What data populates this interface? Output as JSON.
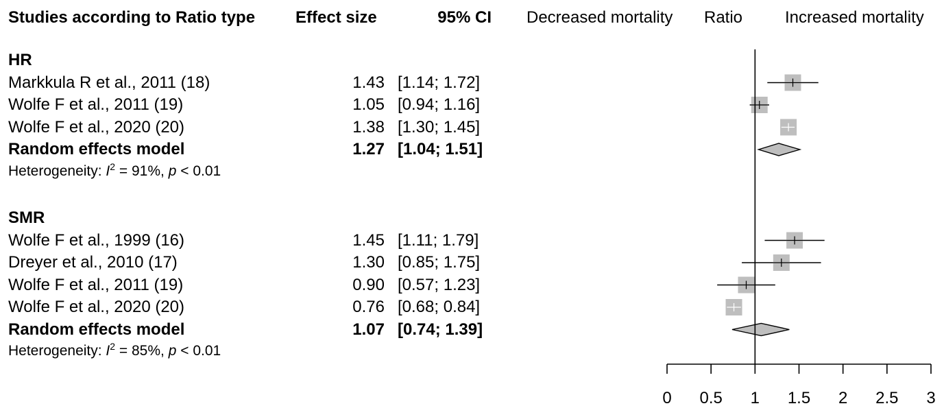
{
  "header": {
    "study_col": "Studies according to Ratio type",
    "effect_col": "Effect size",
    "ci_col": "95% CI",
    "left_label": "Decreased mortality",
    "center_label": "Ratio",
    "right_label": "Increased mortality"
  },
  "chart_data": {
    "type": "forest",
    "title": "",
    "xlabel": "Ratio",
    "xlim": [
      0,
      3
    ],
    "x_ticks": [
      "0",
      "0.5",
      "1",
      "1.5",
      "2",
      "2.5",
      "3"
    ],
    "x_tick_values": [
      0,
      0.5,
      1,
      1.5,
      2,
      2.5,
      3
    ],
    "reference_line": 1,
    "groups": [
      {
        "label": "HR",
        "studies": [
          {
            "name": "Markkula R et al., 2011 (18)",
            "effect": 1.43,
            "lower": 1.14,
            "upper": 1.72,
            "effect_text": "1.43",
            "ci_text": "[1.14; 1.72]"
          },
          {
            "name": "Wolfe F et al., 2011 (19)",
            "effect": 1.05,
            "lower": 0.94,
            "upper": 1.16,
            "effect_text": "1.05",
            "ci_text": "[0.94; 1.16]"
          },
          {
            "name": "Wolfe F et al., 2020 (20)",
            "effect": 1.38,
            "lower": 1.3,
            "upper": 1.45,
            "effect_text": "1.38",
            "ci_text": "[1.30; 1.45]"
          }
        ],
        "pooled": {
          "name": "Random effects model",
          "effect": 1.27,
          "lower": 1.04,
          "upper": 1.51,
          "effect_text": "1.27",
          "ci_text": "[1.04; 1.51]"
        },
        "heterogeneity": {
          "prefix": "Heterogeneity: ",
          "i2_symbol": "I",
          "i2_sup": "2",
          "i2_text": " = 91%, ",
          "p_symbol": "p",
          "p_text": " < 0.01"
        }
      },
      {
        "label": "SMR",
        "studies": [
          {
            "name": "Wolfe F et al., 1999 (16)",
            "effect": 1.45,
            "lower": 1.11,
            "upper": 1.79,
            "effect_text": "1.45",
            "ci_text": "[1.11; 1.79]"
          },
          {
            "name": "Dreyer et al., 2010 (17)",
            "effect": 1.3,
            "lower": 0.85,
            "upper": 1.75,
            "effect_text": "1.30",
            "ci_text": "[0.85; 1.75]"
          },
          {
            "name": "Wolfe F et al., 2011 (19)",
            "effect": 0.9,
            "lower": 0.57,
            "upper": 1.23,
            "effect_text": "0.90",
            "ci_text": "[0.57; 1.23]"
          },
          {
            "name": "Wolfe F et al., 2020 (20)",
            "effect": 0.76,
            "lower": 0.68,
            "upper": 0.84,
            "effect_text": "0.76",
            "ci_text": "[0.68; 0.84]"
          }
        ],
        "pooled": {
          "name": "Random effects model",
          "effect": 1.07,
          "lower": 0.74,
          "upper": 1.39,
          "effect_text": "1.07",
          "ci_text": "[0.74; 1.39]"
        },
        "heterogeneity": {
          "prefix": "Heterogeneity: ",
          "i2_symbol": "I",
          "i2_sup": "2",
          "i2_text": " = 85%, ",
          "p_symbol": "p",
          "p_text": " < 0.01"
        }
      }
    ],
    "colors": {
      "box": "#bebebe",
      "ci_line": "#000000",
      "diamond_fill": "#bebebe",
      "inner_ci_line": "#ffffff"
    }
  }
}
